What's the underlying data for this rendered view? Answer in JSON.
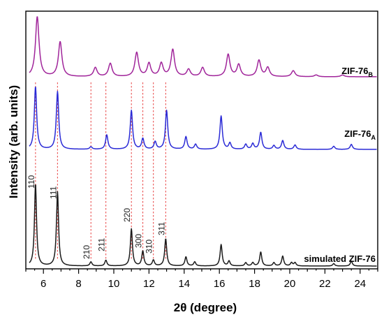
{
  "chart_data": {
    "type": "line",
    "title": "",
    "xlabel": "2θ (degree)",
    "ylabel": "Intensity (arb. units)",
    "xlim": [
      5,
      25
    ],
    "x_ticks": [
      "6",
      "8",
      "10",
      "12",
      "14",
      "16",
      "18",
      "20",
      "22",
      "24"
    ],
    "x_tick_values": [
      6,
      8,
      10,
      12,
      14,
      16,
      18,
      20,
      22,
      24
    ],
    "grid": false,
    "legend": "inline labels at right of each trace",
    "colors": {
      "simulated": "#1a1a1a",
      "A": "#2a2ad6",
      "B": "#a0249a",
      "guides": "#e84040"
    },
    "series": [
      {
        "name": "simulated ZIF-76",
        "baseline": 0.0,
        "peaks": [
          [
            5.55,
            1.0
          ],
          [
            6.8,
            0.9
          ],
          [
            8.7,
            0.05
          ],
          [
            9.55,
            0.07
          ],
          [
            11.0,
            0.45
          ],
          [
            11.65,
            0.18
          ],
          [
            12.25,
            0.07
          ],
          [
            12.95,
            0.33
          ],
          [
            14.1,
            0.11
          ],
          [
            14.6,
            0.05
          ],
          [
            16.1,
            0.26
          ],
          [
            16.55,
            0.06
          ],
          [
            17.5,
            0.04
          ],
          [
            17.9,
            0.04
          ],
          [
            18.35,
            0.17
          ],
          [
            19.1,
            0.04
          ],
          [
            19.6,
            0.12
          ],
          [
            20.1,
            0.04
          ],
          [
            20.3,
            0.04
          ],
          [
            22.5,
            0.03
          ],
          [
            23.5,
            0.06
          ]
        ]
      },
      {
        "name": "ZIF-76",
        "name_sub": "A",
        "baseline": 0.0,
        "peaks": [
          [
            5.55,
            1.0
          ],
          [
            6.8,
            0.92
          ],
          [
            8.7,
            0.04
          ],
          [
            9.6,
            0.23
          ],
          [
            11.0,
            0.62
          ],
          [
            11.65,
            0.17
          ],
          [
            12.35,
            0.12
          ],
          [
            13.0,
            0.62
          ],
          [
            14.1,
            0.2
          ],
          [
            14.65,
            0.08
          ],
          [
            16.1,
            0.53
          ],
          [
            16.6,
            0.1
          ],
          [
            17.5,
            0.08
          ],
          [
            17.9,
            0.09
          ],
          [
            18.35,
            0.27
          ],
          [
            19.1,
            0.06
          ],
          [
            19.6,
            0.14
          ],
          [
            20.3,
            0.07
          ],
          [
            22.5,
            0.05
          ],
          [
            23.5,
            0.08
          ]
        ]
      },
      {
        "name": "ZIF-76",
        "name_sub": "B",
        "baseline": 0.0,
        "peaks": [
          [
            5.65,
            1.0
          ],
          [
            6.95,
            0.58
          ],
          [
            8.95,
            0.15
          ],
          [
            9.8,
            0.22
          ],
          [
            11.3,
            0.4
          ],
          [
            12.0,
            0.22
          ],
          [
            12.7,
            0.22
          ],
          [
            13.35,
            0.45
          ],
          [
            14.25,
            0.12
          ],
          [
            15.05,
            0.15
          ],
          [
            16.5,
            0.37
          ],
          [
            17.1,
            0.2
          ],
          [
            18.25,
            0.27
          ],
          [
            18.75,
            0.15
          ],
          [
            20.2,
            0.1
          ],
          [
            21.5,
            0.03
          ],
          [
            23.0,
            0.03
          ]
        ]
      }
    ],
    "annotations": [
      "110",
      "111",
      "210",
      "211",
      "220",
      "300",
      "310",
      "311"
    ],
    "annotation_positions": [
      5.55,
      6.8,
      8.7,
      9.55,
      11.0,
      11.65,
      12.25,
      12.95
    ]
  }
}
